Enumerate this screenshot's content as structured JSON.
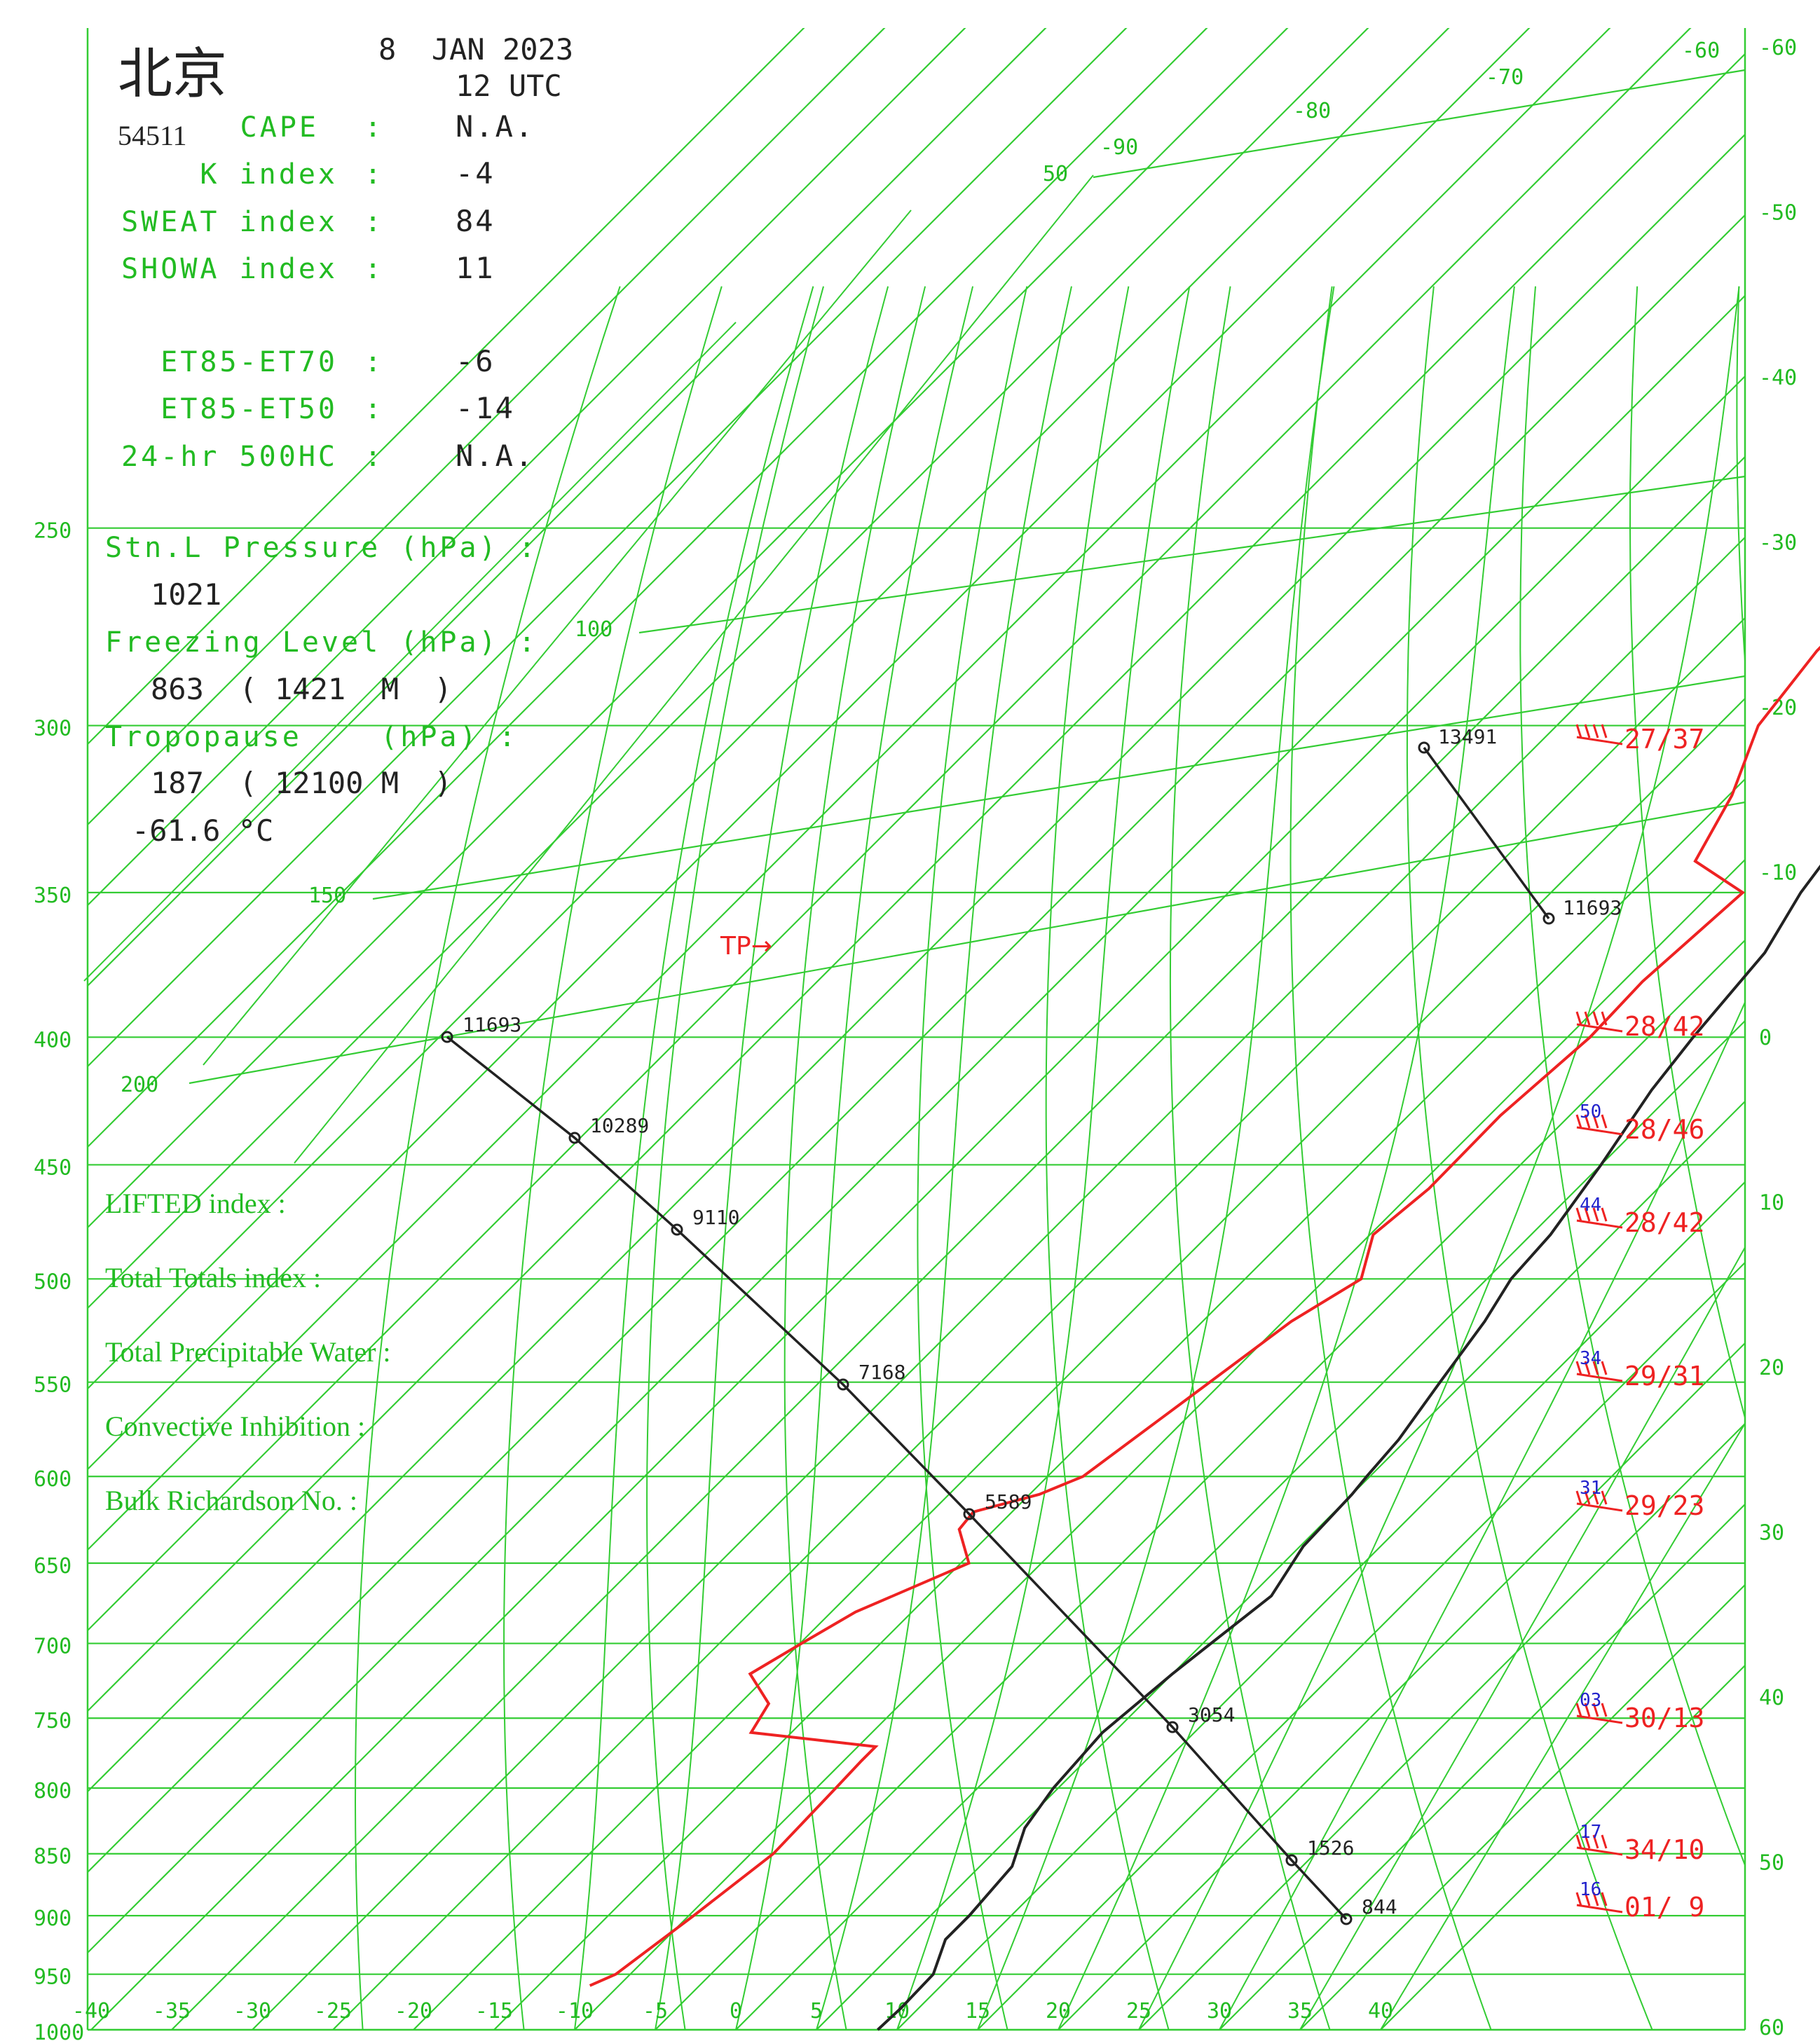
{
  "colors": {
    "background": "#ffffff",
    "grid": "#33cc33",
    "grid_text": "#22bb22",
    "temperature": "#222222",
    "dewpoint": "#ee2222",
    "wind": "#ee2222",
    "wind_speed_label": "#2222cc",
    "text": "#222222"
  },
  "header": {
    "station_name": "北京",
    "station_id": "54511",
    "date": "8  JAN 2023",
    "time": "12 UTC"
  },
  "indices": [
    {
      "label": "CAPE",
      "sep": ":",
      "value": "N.A."
    },
    {
      "label": "K index",
      "sep": ":",
      "value": "-4"
    },
    {
      "label": "SWEAT index",
      "sep": ":",
      "value": "84"
    },
    {
      "label": "SHOWA index",
      "sep": ":",
      "value": "11"
    },
    {
      "label": "ET85-ET70",
      "sep": ":",
      "value": "-6"
    },
    {
      "label": "ET85-ET50",
      "sep": ":",
      "value": "-14"
    },
    {
      "label": "24-hr 500HC",
      "sep": ":",
      "value": "N.A."
    }
  ],
  "station_info": {
    "stn_pressure_label": "Stn.L Pressure (hPa) :",
    "stn_pressure_value": "1021",
    "freezing_label": "Freezing Level (hPa) :",
    "freezing_value": "863  ( 1421  M  )",
    "tropopause_label": "Tropopause    (hPa) :",
    "tropopause_value": "187  ( 12100 M  )",
    "tropopause_temp": "-61.6 °C"
  },
  "lower_indices": [
    "LIFTED index :",
    "Total Totals index :",
    "Total Precipitable Water :",
    "Convective Inhibition :",
    "Bulk Richardson No. :"
  ],
  "chart_data": {
    "type": "line",
    "title": "",
    "x_axis": {
      "label": "",
      "ticks": [
        -40,
        -35,
        -30,
        -25,
        -20,
        -15,
        -10,
        -5,
        0,
        5,
        10,
        15,
        20,
        25,
        30,
        35,
        40
      ],
      "range": [
        -40,
        40
      ]
    },
    "y_axis_left": {
      "label": "",
      "scale": "log",
      "ticks": [
        1000,
        950,
        900,
        850,
        800,
        750,
        700,
        650,
        600,
        550,
        500,
        450,
        400,
        350,
        300,
        250
      ],
      "upper_ticks": [
        200,
        150,
        100,
        50
      ]
    },
    "y_axis_right_labels": [
      "-60",
      "-50",
      "-40",
      "-30",
      "-20",
      "-10",
      "0",
      "10",
      "20",
      "30",
      "40",
      "50",
      "60"
    ],
    "isotherm_top_labels": [
      "-90",
      "-80",
      "-70",
      "-60"
    ],
    "series": [
      {
        "points": [
          [
            1000,
            8.8
          ],
          [
            980,
            8.9
          ],
          [
            950,
            8.8
          ],
          [
            920,
            7.4
          ],
          [
            900,
            7.4
          ],
          [
            860,
            7.0
          ],
          [
            830,
            5.4
          ],
          [
            800,
            4.7
          ],
          [
            760,
            4.3
          ],
          [
            720,
            5.0
          ],
          [
            700,
            5.5
          ],
          [
            670,
            6.3
          ],
          [
            640,
            5.2
          ],
          [
            610,
            5.0
          ],
          [
            600,
            4.8
          ],
          [
            580,
            4.5
          ],
          [
            550,
            3.5
          ],
          [
            520,
            2.5
          ],
          [
            500,
            1.5
          ],
          [
            480,
            1.2
          ],
          [
            450,
            0.0
          ],
          [
            420,
            -1.5
          ],
          [
            400,
            -2.2
          ],
          [
            370,
            -3.0
          ],
          [
            350,
            -4.5
          ],
          [
            330,
            -5.5
          ],
          [
            300,
            -6.0
          ],
          [
            280,
            -7.5
          ],
          [
            260,
            -8.0
          ],
          [
            240,
            -8.5
          ],
          [
            220,
            -9.0
          ],
          [
            200,
            -9.0
          ],
          [
            190,
            -8.8
          ],
          [
            187,
            -8.5
          ],
          [
            180,
            -9.0
          ],
          [
            170,
            -8.0
          ],
          [
            160,
            -5.5
          ],
          [
            150,
            -4.5
          ],
          [
            140,
            -3.0
          ],
          [
            130,
            -1.8
          ],
          [
            120,
            -1.0
          ],
          [
            110,
            -0.5
          ],
          [
            100,
            -0.2
          ],
          [
            95,
            -0.2
          ],
          [
            92,
            0.5
          ],
          [
            90,
            -0.5
          ],
          [
            88,
            0.2
          ]
        ]
      },
      {
        "points": [
          [
            960,
            -11.8
          ],
          [
            950,
            -10.9
          ],
          [
            900,
            -9.7
          ],
          [
            850,
            -8.6
          ],
          [
            800,
            -8.8
          ],
          [
            780,
            -8.9
          ],
          [
            770,
            -8.9
          ],
          [
            760,
            -17.5
          ],
          [
            740,
            -18.2
          ],
          [
            720,
            -21.2
          ],
          [
            700,
            -19.9
          ],
          [
            680,
            -18.5
          ],
          [
            650,
            -14.5
          ],
          [
            630,
            -17.2
          ],
          [
            620,
            -17.4
          ],
          [
            610,
            -14.4
          ],
          [
            600,
            -12.8
          ],
          [
            560,
            -11.2
          ],
          [
            520,
            -9.5
          ],
          [
            500,
            -7.8
          ],
          [
            480,
            -9.8
          ],
          [
            460,
            -9.2
          ],
          [
            430,
            -9.3
          ],
          [
            400,
            -8.6
          ],
          [
            380,
            -8.8
          ],
          [
            350,
            -8.1
          ],
          [
            340,
            -13.0
          ],
          [
            320,
            -14.8
          ],
          [
            300,
            -17.5
          ],
          [
            280,
            -18.5
          ],
          [
            260,
            -18.5
          ],
          [
            240,
            -19.8
          ],
          [
            220,
            -20.7
          ],
          [
            210,
            -21.5
          ],
          [
            205,
            -20.5
          ],
          [
            200,
            -20.0
          ]
        ]
      }
    ],
    "height_profile": [
      {
        "hpa": 925,
        "label": "844"
      },
      {
        "hpa": 850,
        "label": "1526"
      },
      {
        "hpa": 700,
        "label": "3054"
      },
      {
        "hpa": 500,
        "label": "5589"
      },
      {
        "hpa": 400,
        "label": "7168"
      },
      {
        "hpa": 300,
        "label": "9110"
      },
      {
        "hpa": 250,
        "label": "10289"
      },
      {
        "hpa": 200,
        "label": "11693"
      }
    ],
    "upper_height_profile": [
      {
        "hpa": 150,
        "label": "11693"
      },
      {
        "hpa": 100,
        "label": "13491"
      }
    ],
    "tropopause_marker": {
      "label": "TP→",
      "hpa": 187
    },
    "winds": [
      {
        "hpa": 100,
        "dir_speed": "27/37",
        "speed_label": ""
      },
      {
        "hpa": 200,
        "dir_speed": "28/42",
        "speed_label": ""
      },
      {
        "hpa": 250,
        "dir_speed": "28/46",
        "speed_label": "50"
      },
      {
        "hpa": 300,
        "dir_speed": "28/42",
        "speed_label": "44"
      },
      {
        "hpa": 400,
        "dir_speed": "29/31",
        "speed_label": "34"
      },
      {
        "hpa": 500,
        "dir_speed": "29/23",
        "speed_label": "31"
      },
      {
        "hpa": 700,
        "dir_speed": "30/13",
        "speed_label": "03"
      },
      {
        "hpa": 850,
        "dir_speed": "34/10",
        "speed_label": "17"
      },
      {
        "hpa": 925,
        "dir_speed": "01/ 9",
        "speed_label": "16"
      }
    ]
  }
}
